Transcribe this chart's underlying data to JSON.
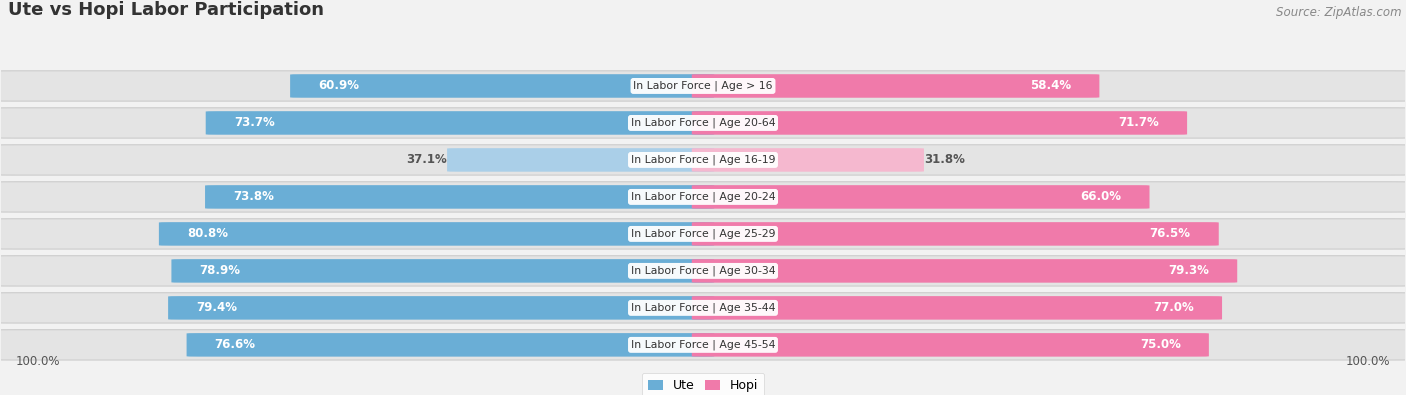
{
  "title": "Ute vs Hopi Labor Participation",
  "source": "Source: ZipAtlas.com",
  "categories": [
    "In Labor Force | Age > 16",
    "In Labor Force | Age 20-64",
    "In Labor Force | Age 16-19",
    "In Labor Force | Age 20-24",
    "In Labor Force | Age 25-29",
    "In Labor Force | Age 30-34",
    "In Labor Force | Age 35-44",
    "In Labor Force | Age 45-54"
  ],
  "ute_values": [
    60.9,
    73.7,
    37.1,
    73.8,
    80.8,
    78.9,
    79.4,
    76.6
  ],
  "hopi_values": [
    58.4,
    71.7,
    31.8,
    66.0,
    76.5,
    79.3,
    77.0,
    75.0
  ],
  "ute_color": "#6aaed6",
  "hopi_color": "#f07aaa",
  "ute_color_light": "#aacfe8",
  "hopi_color_light": "#f5b8cf",
  "text_white": "#ffffff",
  "text_dark": "#555555",
  "bg_color": "#f2f2f2",
  "row_bg_color": "#e4e4e4",
  "title_color": "#333333",
  "source_color": "#888888",
  "legend_label_ute": "Ute",
  "legend_label_hopi": "Hopi",
  "x_axis_label": "100.0%"
}
